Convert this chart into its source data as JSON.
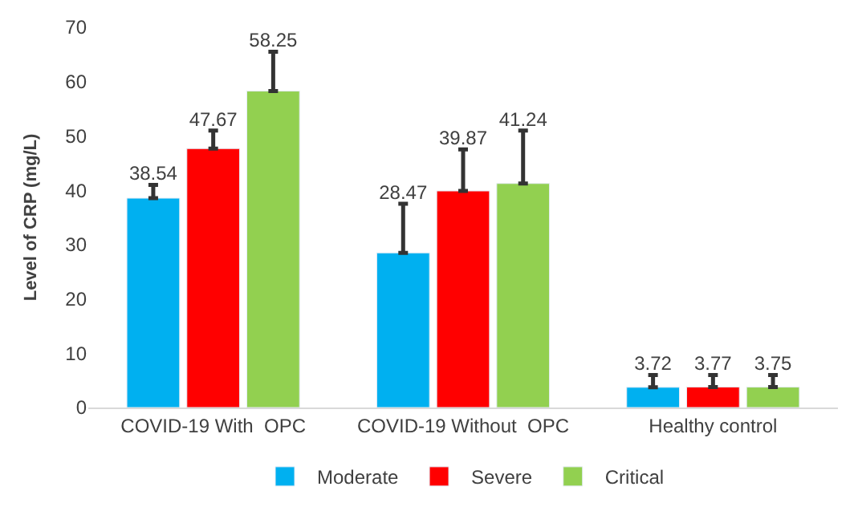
{
  "chart_data": {
    "type": "bar",
    "ylabel": "Level of CRP (mg/L)",
    "categories": [
      "COVID-19 With  OPC",
      "COVID-19 Without  OPC",
      "Healthy control"
    ],
    "series": [
      {
        "name": "Moderate",
        "color": "#00b0f0",
        "values": [
          38.54,
          28.47,
          3.72
        ],
        "errors": [
          [
            38.54,
            41
          ],
          [
            28.47,
            37.5
          ],
          [
            3.72,
            6
          ]
        ]
      },
      {
        "name": "Severe",
        "color": "#ff0000",
        "values": [
          47.67,
          39.87,
          3.77
        ],
        "errors": [
          [
            47.67,
            51
          ],
          [
            39.87,
            47.5
          ],
          [
            3.77,
            6
          ]
        ]
      },
      {
        "name": "Critical",
        "color": "#92d050",
        "values": [
          58.25,
          41.24,
          3.75
        ],
        "errors": [
          [
            58.25,
            65.5
          ],
          [
            41.24,
            51
          ],
          [
            3.75,
            6
          ]
        ]
      }
    ],
    "ylim": [
      0,
      70
    ],
    "yticks": [
      0,
      10,
      20,
      30,
      40,
      50,
      60,
      70
    ],
    "data_labels": true,
    "legend": "bottom"
  }
}
